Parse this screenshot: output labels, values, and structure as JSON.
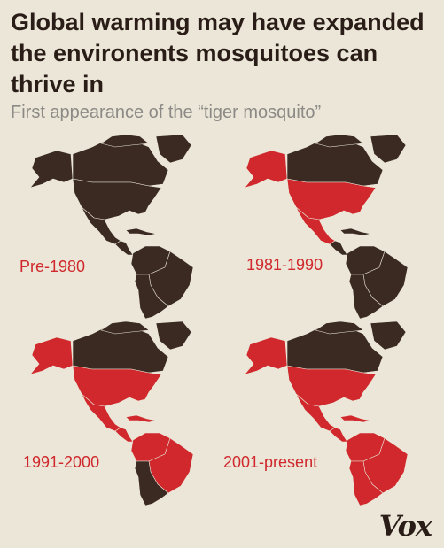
{
  "header": {
    "title": "Global warming may have expanded the environents mosquitoes can thrive in",
    "subtitle": "First appearance of the “tiger mosquito”"
  },
  "colors": {
    "land": "#3a2a22",
    "tiger_mosquito_presence": "#d0282c",
    "background": "#ebe6d7"
  },
  "maps": [
    {
      "period": "Pre-1980",
      "regions_with_tiger_mosquito": []
    },
    {
      "period": "1981-1990",
      "regions_with_tiger_mosquito": [
        "alaska",
        "united-states",
        "mexico",
        "eastern-brazil"
      ]
    },
    {
      "period": "1991-2000",
      "regions_with_tiger_mosquito": [
        "alaska",
        "united-states",
        "mexico",
        "central-america",
        "caribbean",
        "northern-south-america",
        "brazil"
      ]
    },
    {
      "period": "2001-present",
      "regions_with_tiger_mosquito": [
        "alaska",
        "united-states",
        "mexico",
        "central-america",
        "caribbean",
        "northern-south-america",
        "brazil",
        "southern-south-america"
      ]
    }
  ],
  "brand": {
    "logo_text": "Vox"
  }
}
